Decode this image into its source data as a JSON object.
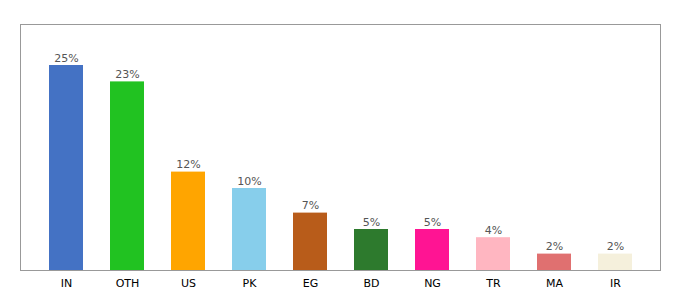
{
  "chart_data": {
    "type": "bar",
    "categories": [
      "IN",
      "OTH",
      "US",
      "PK",
      "EG",
      "BD",
      "NG",
      "TR",
      "MA",
      "IR"
    ],
    "values": [
      25,
      23,
      12,
      10,
      7,
      5,
      5,
      4,
      2,
      2
    ],
    "value_labels": [
      "25%",
      "23%",
      "12%",
      "10%",
      "7%",
      "5%",
      "5%",
      "4%",
      "2%",
      "2%"
    ],
    "colors": [
      "#4472c4",
      "#21c221",
      "#ffa500",
      "#87ceeb",
      "#b85c1a",
      "#2d7a2d",
      "#ff1493",
      "#ffb6c1",
      "#e07070",
      "#f5f0dc"
    ],
    "ylim": [
      0,
      30
    ],
    "yticks": [],
    "grid": false,
    "data_labels": true,
    "tick_labels": "x"
  }
}
